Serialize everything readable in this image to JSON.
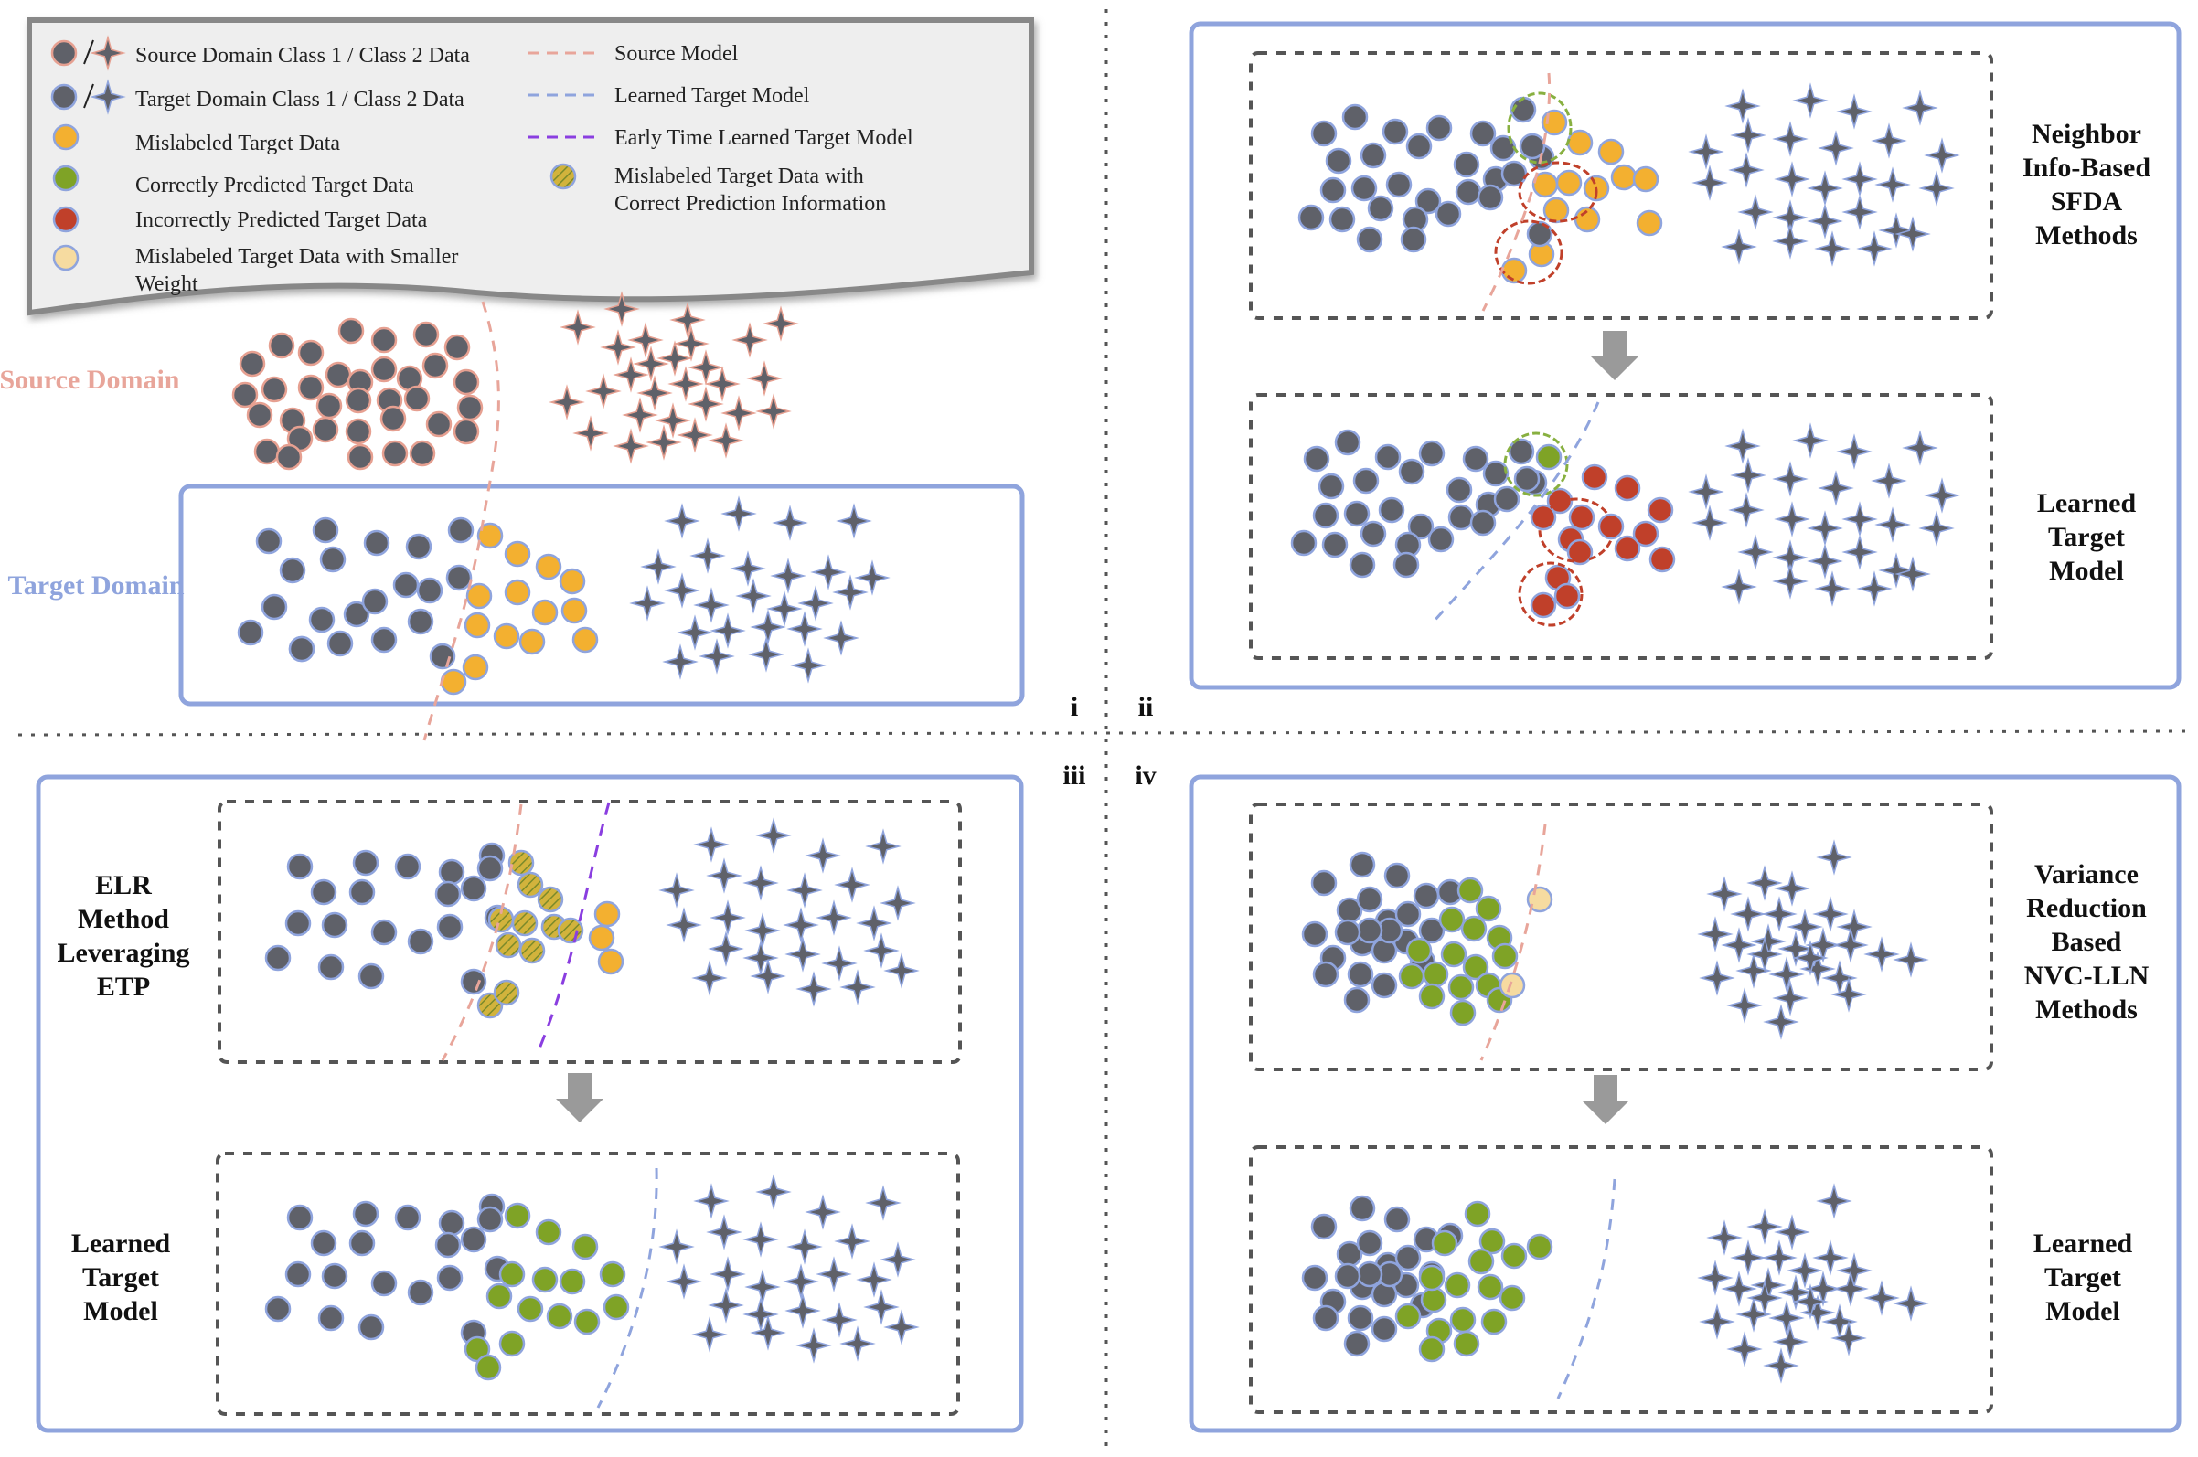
{
  "legend": {
    "items": [
      {
        "key": "source-class",
        "label": "Source Domain Class 1 / Class 2 Data"
      },
      {
        "key": "target-class",
        "label": "Target  Domain Class 1 / Class 2 Data"
      },
      {
        "key": "mislabeled",
        "label": "Mislabeled Target Data"
      },
      {
        "key": "correct",
        "label": "Correctly Predicted Target Data"
      },
      {
        "key": "incorrect",
        "label": "Incorrectly Predicted Target Data"
      },
      {
        "key": "smaller-weight",
        "label": "Mislabeled Target Data with Smaller Weight"
      },
      {
        "key": "source-model",
        "label": "Source Model"
      },
      {
        "key": "learned-target-model",
        "label": "Learned Target Model"
      },
      {
        "key": "early-time-model",
        "label": "Early Time Learned Target Model"
      },
      {
        "key": "mislabeled-correct-info",
        "label": "Mislabeled Target Data with Correct Prediction Information"
      }
    ]
  },
  "panel_i": {
    "roman": "i",
    "source_domain": "Source Domain",
    "target_domain": "Target Domain"
  },
  "panel_ii": {
    "roman": "ii",
    "top_label": "Neighbor Info-Based SFDA Methods",
    "bottom_label": "Learned Target Model"
  },
  "panel_iii": {
    "roman": "iii",
    "top_label": "ELR Method Leveraging ETP",
    "bottom_label": "Learned Target Model"
  },
  "panel_iv": {
    "roman": "iv",
    "top_label": "Variance Reduction Based NVC-LLN Methods",
    "bottom_label": "Learned Target Model"
  },
  "colors": {
    "gray_point": "#5f6169",
    "source_edge": "#e6a091",
    "target_edge": "#8fa4dd",
    "mislabeled": "#f3b030",
    "correct": "#7fa326",
    "incorrect": "#c0402a",
    "smaller_weight": "#f6dba0",
    "source_model": "#e8a59a",
    "learned_model": "#8fa4dd",
    "early_model": "#8a3ee0",
    "panel_border": "#8fa4dd"
  }
}
